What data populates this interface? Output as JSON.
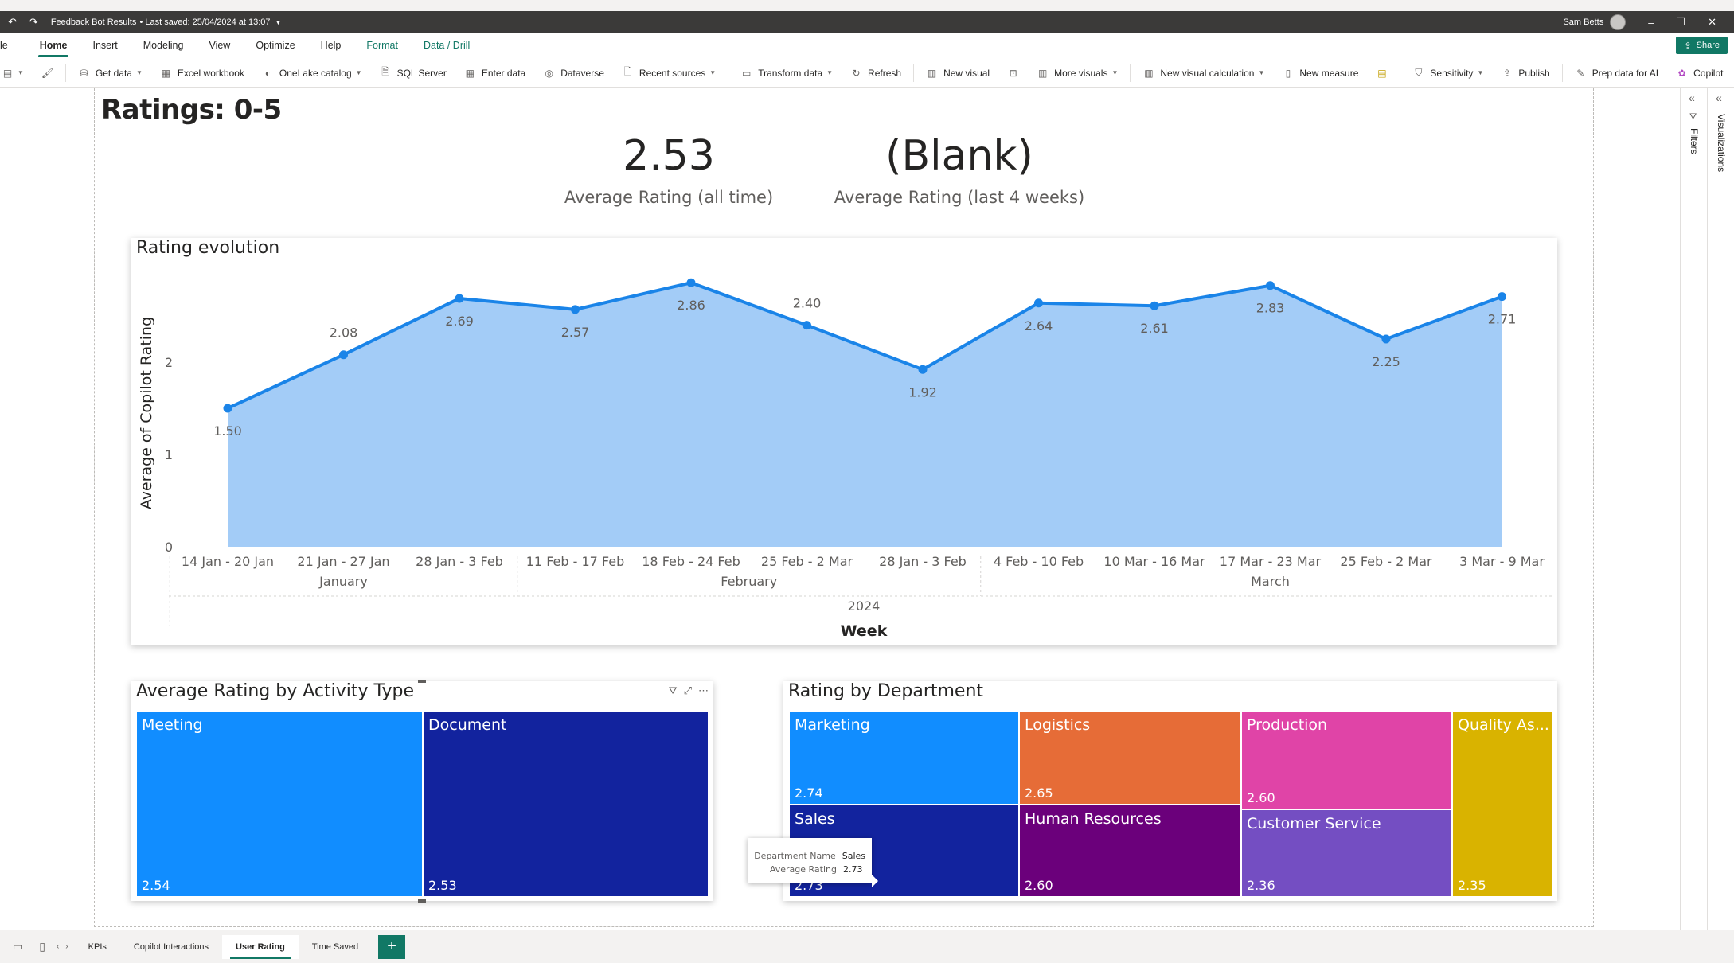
{
  "titlebar": {
    "file_title": "Feedback Bot Results",
    "last_saved": "• Last saved: 25/04/2024 at 13:07",
    "user_name": "Sam Betts"
  },
  "ribbon": {
    "tabs": [
      {
        "label": "le",
        "active": false
      },
      {
        "label": "Home",
        "active": true
      },
      {
        "label": "Insert",
        "active": false
      },
      {
        "label": "Modeling",
        "active": false
      },
      {
        "label": "View",
        "active": false
      },
      {
        "label": "Optimize",
        "active": false
      },
      {
        "label": "Help",
        "active": false
      },
      {
        "label": "Format",
        "active": false
      },
      {
        "label": "Data / Drill",
        "active": false
      }
    ],
    "share_label": "Share",
    "tools": {
      "get_data": "Get data",
      "excel_workbook": "Excel workbook",
      "onelake_catalog": "OneLake catalog",
      "sql_server": "SQL Server",
      "enter_data": "Enter data",
      "dataverse": "Dataverse",
      "recent_sources": "Recent sources",
      "transform_data": "Transform data",
      "refresh": "Refresh",
      "new_visual": "New visual",
      "more_visuals": "More visuals",
      "new_visual_calculation": "New visual calculation",
      "new_measure": "New measure",
      "sensitivity": "Sensitivity",
      "publish": "Publish",
      "prep_data_for_ai": "Prep data for AI",
      "copilot": "Copilot"
    }
  },
  "page": {
    "title": "Ratings: 0-5",
    "kpis": [
      {
        "value": "2.53",
        "label": "Average Rating (all time)"
      },
      {
        "value": "(Blank)",
        "label": "Average Rating (last 4 weeks)"
      }
    ]
  },
  "chart_data": [
    {
      "type": "area",
      "title": "Rating evolution",
      "xlabel": "Week",
      "ylabel": "Average of Copilot Rating",
      "ylim": [
        0,
        3
      ],
      "yticks": [
        "0",
        "1",
        "2"
      ],
      "grid": false,
      "x": [
        "14 Jan - 20 Jan",
        "21 Jan - 27 Jan",
        "28 Jan - 3 Feb",
        "11 Feb - 17 Feb",
        "18 Feb - 24 Feb",
        "25 Feb - 2 Mar",
        "28 Jan - 3 Feb",
        "4 Feb - 10 Feb",
        "10 Mar - 16 Mar",
        "17 Mar - 23 Mar",
        "25 Feb - 2 Mar",
        "3 Mar - 9 Mar"
      ],
      "month_groups": [
        {
          "label": "January",
          "span": 3
        },
        {
          "label": "February",
          "span": 4
        },
        {
          "label": "March",
          "span": 5
        }
      ],
      "year_label": "2024",
      "values": [
        1.5,
        2.08,
        2.69,
        2.57,
        2.86,
        2.4,
        1.92,
        2.64,
        2.61,
        2.83,
        2.25,
        2.71
      ],
      "data_labels": [
        "1.50",
        "2.08",
        "2.69",
        "2.57",
        "2.86",
        "2.40",
        "1.92",
        "2.64",
        "2.61",
        "2.83",
        "2.25",
        "2.71"
      ],
      "label_above": [
        false,
        true,
        false,
        false,
        false,
        true,
        false,
        false,
        false,
        false,
        false,
        false
      ],
      "line_color": "#1a84e8",
      "fill_color": "#a3ccf7"
    },
    {
      "type": "treemap",
      "title": "Average Rating by Activity Type",
      "items": [
        {
          "name": "Meeting",
          "value": 2.54,
          "label": "2.54",
          "color": "#118dff"
        },
        {
          "name": "Document",
          "value": 2.53,
          "label": "2.53",
          "color": "#12239e"
        }
      ]
    },
    {
      "type": "treemap",
      "title": "Rating by Department",
      "items": [
        {
          "name": "Marketing",
          "value": 2.74,
          "label": "2.74",
          "color": "#118dff"
        },
        {
          "name": "Sales",
          "value": 2.73,
          "label": "2.73",
          "color": "#12239e"
        },
        {
          "name": "Logistics",
          "value": 2.65,
          "label": "2.65",
          "color": "#e66c37"
        },
        {
          "name": "Human Resources",
          "value": 2.6,
          "label": "2.60",
          "color": "#6b007b"
        },
        {
          "name": "Production",
          "value": 2.6,
          "label": "2.60",
          "color": "#e044a7"
        },
        {
          "name": "Customer Service",
          "value": 2.36,
          "label": "2.36",
          "color": "#744ec2"
        },
        {
          "name": "Quality As...",
          "value": 2.35,
          "label": "2.35",
          "color": "#d9b300"
        }
      ]
    }
  ],
  "tooltip": {
    "key1": "Department Name",
    "val1": "Sales",
    "key2": "Average Rating",
    "val2": "2.73"
  },
  "right_panes": {
    "filters": "Filters",
    "visualizations": "Visualizations"
  },
  "bottom_tabs": [
    {
      "label": "KPIs",
      "active": false
    },
    {
      "label": "Copilot Interactions",
      "active": false
    },
    {
      "label": "User Rating",
      "active": true
    },
    {
      "label": "Time Saved",
      "active": false
    }
  ],
  "add_page_label": "+"
}
